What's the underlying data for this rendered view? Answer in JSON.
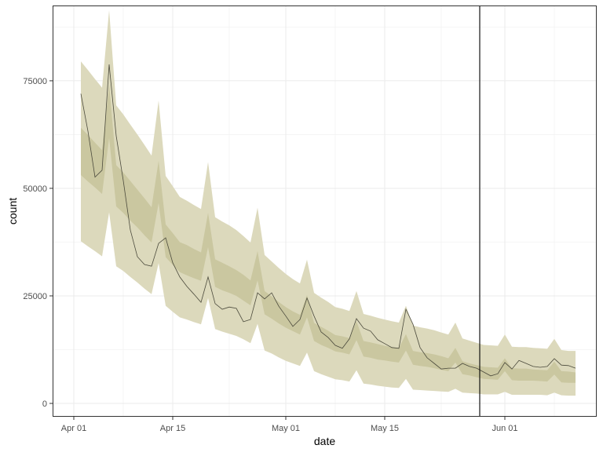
{
  "chart_data": {
    "type": "line",
    "title": "",
    "xlabel": "date",
    "ylabel": "count",
    "x_ticks": [
      "Apr 01",
      "Apr 15",
      "May 01",
      "May 15",
      "Jun 01"
    ],
    "x_minor": [
      "Apr 08",
      "Apr 23",
      "May 08",
      "May 23",
      "Jun 08"
    ],
    "y_ticks": [
      0,
      25000,
      50000,
      75000
    ],
    "y_tick_labels": [
      "0",
      "25000",
      "50000",
      "75000"
    ],
    "xlim": [
      "Mar 29",
      "Jun 14"
    ],
    "ylim": [
      -3100,
      92500
    ],
    "grid": true,
    "vline": "May 28",
    "colors": {
      "outer_band": "#dcd9bc",
      "inner_band": "#cac7a0",
      "line": "#4b4a3c",
      "vline": "#000000",
      "grid": "#ebebeb"
    },
    "x": [
      "Apr 02",
      "Apr 03",
      "Apr 04",
      "Apr 05",
      "Apr 06",
      "Apr 07",
      "Apr 08",
      "Apr 09",
      "Apr 10",
      "Apr 11",
      "Apr 12",
      "Apr 13",
      "Apr 14",
      "Apr 15",
      "Apr 16",
      "Apr 17",
      "Apr 18",
      "Apr 19",
      "Apr 20",
      "Apr 21",
      "Apr 22",
      "Apr 23",
      "Apr 24",
      "Apr 25",
      "Apr 26",
      "Apr 27",
      "Apr 28",
      "Apr 29",
      "Apr 30",
      "May 01",
      "May 02",
      "May 03",
      "May 04",
      "May 05",
      "May 06",
      "May 07",
      "May 08",
      "May 09",
      "May 10",
      "May 11",
      "May 12",
      "May 13",
      "May 14",
      "May 15",
      "May 16",
      "May 17",
      "May 18",
      "May 19",
      "May 20",
      "May 21",
      "May 22",
      "May 23",
      "May 24",
      "May 25",
      "May 26",
      "May 27",
      "May 28",
      "May 29",
      "May 30",
      "May 31",
      "Jun 01",
      "Jun 02",
      "Jun 03",
      "Jun 04",
      "Jun 05",
      "Jun 06",
      "Jun 07",
      "Jun 08",
      "Jun 09",
      "Jun 10",
      "Jun 11"
    ],
    "line": [
      72000,
      63300,
      52600,
      54200,
      78800,
      62200,
      51800,
      40300,
      34100,
      32300,
      31900,
      37200,
      38500,
      32700,
      29400,
      27200,
      25400,
      23500,
      29400,
      23200,
      21900,
      22400,
      22100,
      19000,
      19500,
      25700,
      24300,
      25700,
      22600,
      20300,
      17900,
      19500,
      24500,
      20300,
      16600,
      15300,
      13500,
      12800,
      15000,
      19700,
      17500,
      16800,
      14800,
      13900,
      13000,
      12800,
      21900,
      18400,
      13000,
      10600,
      9300,
      8000,
      8200,
      8200,
      9300,
      8600,
      8200,
      7300,
      6400,
      6900,
      9500,
      8000,
      10000,
      9300,
      8600,
      8400,
      8600,
      10400,
      8900,
      8800,
      8200
    ],
    "outer_lo": [
      37700,
      36500,
      35400,
      34200,
      44400,
      31900,
      30800,
      29400,
      28100,
      26700,
      25400,
      32600,
      22700,
      21300,
      20000,
      19500,
      18900,
      18400,
      24500,
      17300,
      16700,
      16200,
      15700,
      14900,
      14000,
      18500,
      12300,
      11600,
      10700,
      9900,
      9300,
      8700,
      11800,
      7500,
      6800,
      6200,
      5600,
      5400,
      5100,
      7700,
      4600,
      4400,
      4100,
      3900,
      3700,
      3600,
      5700,
      3200,
      3100,
      3000,
      2900,
      2800,
      2700,
      3400,
      2500,
      2400,
      2300,
      2100,
      2100,
      2100,
      2700,
      2000,
      2000,
      2000,
      2000,
      2000,
      1900,
      2500,
      1900,
      1800,
      1800
    ],
    "outer_hi": [
      79500,
      77500,
      75400,
      73400,
      91400,
      69300,
      67200,
      64800,
      62500,
      60100,
      57600,
      70400,
      52900,
      50500,
      48000,
      47100,
      46100,
      45200,
      56100,
      43300,
      42300,
      41400,
      40300,
      38900,
      37400,
      45500,
      34500,
      33000,
      31500,
      30100,
      28900,
      27900,
      33400,
      25700,
      24600,
      23600,
      22400,
      22000,
      21500,
      26100,
      20800,
      20400,
      19900,
      19500,
      19100,
      18800,
      22700,
      18100,
      17700,
      17400,
      17000,
      16500,
      16000,
      18800,
      15100,
      14600,
      14100,
      13600,
      13500,
      13400,
      16000,
      13200,
      13100,
      13100,
      12900,
      12800,
      12700,
      15000,
      12400,
      12200,
      12200
    ],
    "inner_lo": [
      53100,
      51600,
      50200,
      48700,
      61700,
      45800,
      44300,
      42500,
      40900,
      39100,
      37400,
      46600,
      34000,
      32200,
      30500,
      29800,
      29100,
      28500,
      36300,
      27100,
      26300,
      25700,
      25000,
      23900,
      22800,
      28600,
      20700,
      19700,
      18600,
      17600,
      16800,
      16000,
      20000,
      14500,
      13600,
      12900,
      12100,
      11800,
      11400,
      14700,
      10900,
      10600,
      10200,
      10000,
      9700,
      9500,
      12300,
      9000,
      8700,
      8500,
      8200,
      7800,
      7500,
      9500,
      6800,
      6500,
      6100,
      5700,
      5600,
      5500,
      7500,
      5400,
      5300,
      5300,
      5300,
      5200,
      5100,
      6700,
      4900,
      4800,
      4800
    ],
    "inner_hi": [
      64100,
      62400,
      60600,
      58900,
      74100,
      55400,
      53700,
      51700,
      49700,
      47700,
      45600,
      56400,
      41600,
      39600,
      37500,
      36800,
      35900,
      35100,
      44300,
      33500,
      32700,
      31900,
      31000,
      29900,
      28600,
      35400,
      26100,
      24900,
      23600,
      22400,
      21400,
      20600,
      25200,
      18700,
      17800,
      16900,
      15900,
      15600,
      15200,
      19100,
      14500,
      14200,
      13800,
      13400,
      13100,
      12900,
      16100,
      12200,
      11900,
      11700,
      11400,
      11000,
      10500,
      12900,
      9800,
      9300,
      8900,
      8500,
      8400,
      8300,
      10500,
      8200,
      8100,
      8100,
      7900,
      7800,
      7700,
      9700,
      7500,
      7400,
      7200
    ]
  }
}
